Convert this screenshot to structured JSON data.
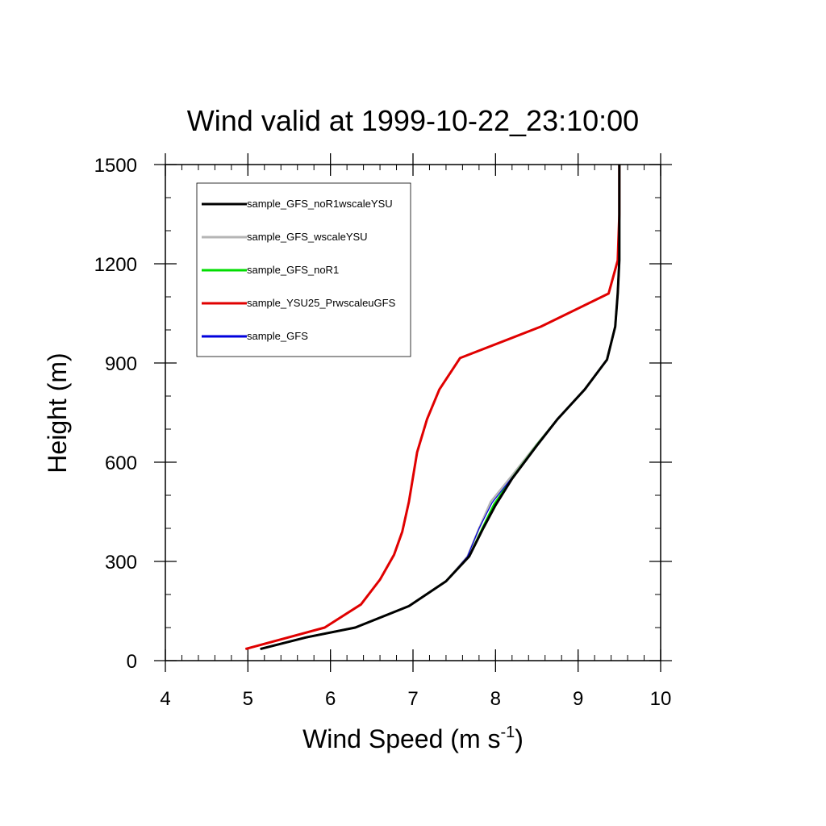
{
  "chart_data": {
    "type": "line",
    "title": "Wind valid at 1999-10-22_23:10:00",
    "xlabel": "Wind Speed (m s",
    "xlabel_sup": "-1",
    "xlabel_end": ")",
    "ylabel": "Height (m)",
    "xlim": [
      4,
      10
    ],
    "ylim": [
      0,
      1500
    ],
    "x_ticks": [
      4,
      5,
      6,
      7,
      8,
      9,
      10
    ],
    "y_ticks": [
      0,
      300,
      600,
      900,
      1200,
      1500
    ],
    "x_minor_step": 0.2,
    "y_minor_step": 100,
    "grid": false,
    "legend_position": "top-left",
    "series": [
      {
        "name": "sample_GFS_noR1wscaleYSU",
        "color": "#000000",
        "x": [
          5.15,
          5.7,
          6.3,
          6.95,
          7.4,
          7.68,
          7.85,
          8.0,
          8.2,
          8.5,
          8.75,
          9.08,
          9.35,
          9.45,
          9.48,
          9.5,
          9.5,
          9.5
        ],
        "y": [
          35,
          70,
          100,
          165,
          240,
          315,
          400,
          470,
          550,
          650,
          730,
          820,
          910,
          1010,
          1110,
          1210,
          1350,
          1500
        ]
      },
      {
        "name": "sample_GFS_wscaleYSU",
        "color": "#b5b5b5",
        "x": [
          5.15,
          5.7,
          6.3,
          6.95,
          7.4,
          7.66,
          7.8,
          7.94,
          8.2,
          8.5,
          8.75,
          9.08,
          9.35,
          9.45,
          9.48,
          9.5,
          9.5,
          9.5
        ],
        "y": [
          35,
          70,
          100,
          165,
          240,
          315,
          400,
          480,
          560,
          655,
          730,
          820,
          910,
          1010,
          1110,
          1210,
          1350,
          1500
        ]
      },
      {
        "name": "sample_GFS_noR1",
        "color": "#00dd00",
        "x": [
          5.15,
          5.7,
          6.3,
          6.95,
          7.4,
          7.68,
          7.84,
          7.98,
          8.2,
          8.5,
          8.75,
          9.08,
          9.35,
          9.45,
          9.48,
          9.5,
          9.5,
          9.5
        ],
        "y": [
          35,
          70,
          100,
          165,
          240,
          315,
          400,
          472,
          552,
          652,
          730,
          820,
          910,
          1010,
          1110,
          1210,
          1350,
          1500
        ]
      },
      {
        "name": "sample_YSU25_PrwscaleuGFS",
        "color": "#e00000",
        "x": [
          4.97,
          5.93,
          6.37,
          6.6,
          6.77,
          6.87,
          6.95,
          7.05,
          7.17,
          7.32,
          7.57,
          8.55,
          9.37,
          9.48,
          9.5,
          9.5
        ],
        "y": [
          35,
          100,
          170,
          245,
          320,
          390,
          480,
          630,
          730,
          820,
          915,
          1010,
          1110,
          1210,
          1350,
          1500
        ]
      },
      {
        "name": "sample_GFS",
        "color": "#0000dd",
        "x": [
          5.15,
          5.7,
          6.3,
          6.95,
          7.4,
          7.66,
          7.8,
          7.96,
          8.22,
          8.52,
          8.75,
          9.08,
          9.35,
          9.45,
          9.48,
          9.5,
          9.5,
          9.5
        ],
        "y": [
          35,
          70,
          100,
          165,
          240,
          315,
          400,
          478,
          560,
          655,
          730,
          820,
          910,
          1010,
          1110,
          1210,
          1350,
          1500
        ]
      }
    ]
  }
}
